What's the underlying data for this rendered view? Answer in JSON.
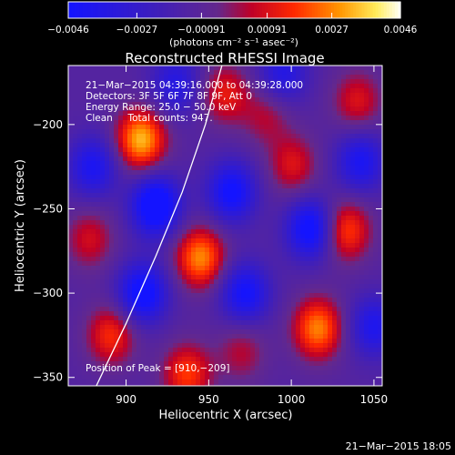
{
  "chart_data": {
    "type": "heatmap",
    "title": "Reconstructed RHESSI Image",
    "xlabel": "Heliocentric X (arcsec)",
    "ylabel": "Heliocentric Y (arcsec)",
    "xlim": [
      865,
      1055
    ],
    "ylim": [
      -355,
      -165
    ],
    "x_ticks": [
      {
        "value": 900,
        "label": "900"
      },
      {
        "value": 950,
        "label": "950"
      },
      {
        "value": 1000,
        "label": "1000"
      },
      {
        "value": 1050,
        "label": "1050"
      }
    ],
    "y_ticks": [
      {
        "value": -200,
        "label": "−200"
      },
      {
        "value": -250,
        "label": "−250"
      },
      {
        "value": -300,
        "label": "−300"
      },
      {
        "value": -350,
        "label": "−350"
      }
    ],
    "colorbar": {
      "range": [
        -0.0046,
        0.0046
      ],
      "ticks": [
        {
          "value": -0.0046,
          "label": "−0.0046"
        },
        {
          "value": -0.0027,
          "label": "−0.0027"
        },
        {
          "value": -0.00091,
          "label": "−0.00091"
        },
        {
          "value": 0.00091,
          "label": "0.00091"
        },
        {
          "value": 0.0027,
          "label": "0.0027"
        },
        {
          "value": 0.0046,
          "label": "0.0046"
        }
      ],
      "unit_label": "(photons cm⁻² s⁻¹ asec⁻²)"
    },
    "info_lines": [
      "21−Mar−2015 04:39:16.000 to 04:39:28.000",
      "Detectors: 3F 5F 6F 7F 8F 9F, Att 0",
      "Energy Range: 25.0 − 50.0 keV",
      "Clean     Total counts: 947."
    ],
    "peak_label": "Position of Peak = [910,−209]",
    "peak": {
      "x": 910,
      "y": -209
    },
    "limb_curve": [
      {
        "x": 882,
        "y": -355
      },
      {
        "x": 900,
        "y": -318
      },
      {
        "x": 918,
        "y": -278
      },
      {
        "x": 934,
        "y": -240
      },
      {
        "x": 948,
        "y": -200
      },
      {
        "x": 958,
        "y": -165
      }
    ],
    "sources": [
      {
        "x": 909,
        "y": -209,
        "intensity": 0.0046
      },
      {
        "x": 945,
        "y": -279,
        "intensity": 0.004
      },
      {
        "x": 1016,
        "y": -321,
        "intensity": 0.0039
      },
      {
        "x": 1033,
        "y": -263,
        "intensity": 0.0032
      },
      {
        "x": 937,
        "y": -348,
        "intensity": 0.003
      },
      {
        "x": 891,
        "y": -325,
        "intensity": 0.0028
      },
      {
        "x": 960,
        "y": -182,
        "intensity": 0.0024
      },
      {
        "x": 1001,
        "y": -224,
        "intensity": 0.0022
      },
      {
        "x": 1040,
        "y": -186,
        "intensity": 0.0022
      },
      {
        "x": 878,
        "y": -268,
        "intensity": 0.002
      },
      {
        "x": 970,
        "y": -335,
        "intensity": 0.0016
      },
      {
        "x": 985,
        "y": -195,
        "intensity": 0.0016
      },
      {
        "x": 918,
        "y": -248,
        "intensity": -0.0046
      },
      {
        "x": 964,
        "y": -240,
        "intensity": -0.0036
      },
      {
        "x": 1012,
        "y": -262,
        "intensity": -0.004
      },
      {
        "x": 972,
        "y": -300,
        "intensity": -0.0034
      },
      {
        "x": 1042,
        "y": -222,
        "intensity": -0.003
      },
      {
        "x": 910,
        "y": -300,
        "intensity": -0.004
      },
      {
        "x": 880,
        "y": -225,
        "intensity": -0.003
      },
      {
        "x": 1050,
        "y": -320,
        "intensity": -0.0028
      },
      {
        "x": 995,
        "y": -170,
        "intensity": -0.0025
      },
      {
        "x": 930,
        "y": -176,
        "intensity": -0.0024
      }
    ]
  },
  "footer": {
    "timestamp": "21−Mar−2015 18:05"
  }
}
